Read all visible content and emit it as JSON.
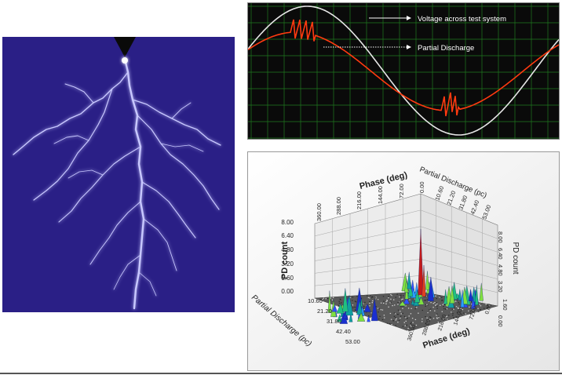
{
  "scope": {
    "voltage_label": "Voltage across test system",
    "pd_label": "Partial Discharge",
    "grid_color": "#1f7a1f",
    "voltage_color": "#e6e6e6",
    "pd_color": "#ff3a10"
  },
  "plot3d": {
    "ylabel": "PD count",
    "y_ticks": [
      "0.00",
      "1.60",
      "3.20",
      "4.80",
      "6.40",
      "8.00"
    ],
    "phase_label_top": "Phase (deg)",
    "phase_ticks_top": [
      "360.00",
      "288.00",
      "216.00",
      "144.00",
      "72.00",
      "0.00"
    ],
    "pd_label_right_top": "Partial Discharge (pc)",
    "pd_ticks_right_top": [
      "10.60",
      "21.20",
      "31.80",
      "42.40",
      "53.00"
    ],
    "pd_count_label_right": "PD count",
    "pd_count_ticks_right": [
      "1.60",
      "3.20",
      "4.80",
      "6.40",
      "8.00",
      "0.00"
    ],
    "pd_label_left": "Partial Discharge (pc)",
    "pd_ticks_left": [
      "10.60",
      "21.20",
      "31.80",
      "42.40",
      "53.00"
    ],
    "phase_label_bottom": "Phase (deg)",
    "phase_ticks_bottom": [
      "360.00",
      "288.00",
      "216.00",
      "144.00",
      "72.00",
      "0.00"
    ]
  }
}
